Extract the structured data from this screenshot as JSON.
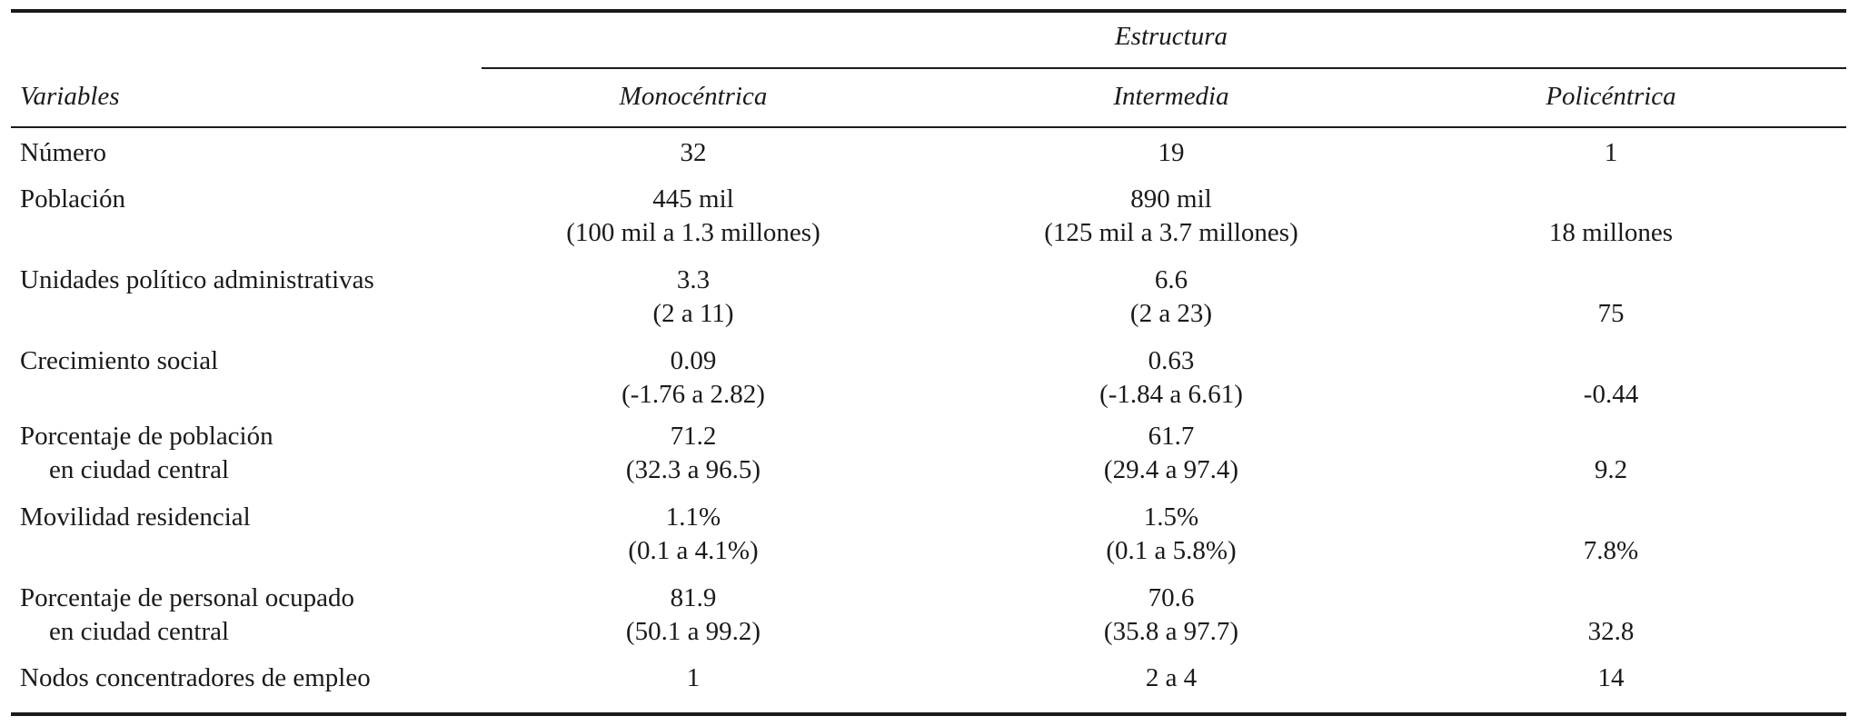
{
  "header": {
    "spanner": "Estructura",
    "stub": "Variables",
    "columns": [
      "Monocéntrica",
      "Intermedia",
      "Policéntrica"
    ]
  },
  "rows": [
    {
      "label": [
        "Número"
      ],
      "mono": [
        "32"
      ],
      "inter": [
        "19"
      ],
      "poli": "1"
    },
    {
      "label": [
        "Población"
      ],
      "mono": [
        "445 mil",
        "(100 mil a 1.3 millones)"
      ],
      "inter": [
        "890 mil",
        "(125 mil a 3.7 millones)"
      ],
      "poli": "18 millones"
    },
    {
      "label": [
        "Unidades político administrativas"
      ],
      "mono": [
        "3.3",
        "(2 a 11)"
      ],
      "inter": [
        "6.6",
        "(2 a 23)"
      ],
      "poli": "75"
    },
    {
      "label": [
        "Crecimiento social"
      ],
      "mono": [
        "0.09",
        "(-1.76 a 2.82)"
      ],
      "inter": [
        "0.63",
        "(-1.84 a 6.61)"
      ],
      "poli": "-0.44"
    },
    {
      "label": [
        "Porcentaje de población",
        "en ciudad central"
      ],
      "mono": [
        "71.2",
        "(32.3 a 96.5)"
      ],
      "inter": [
        "61.7",
        "(29.4 a 97.4)"
      ],
      "poli": "9.2"
    },
    {
      "label": [
        "Movilidad residencial"
      ],
      "mono": [
        "1.1%",
        "(0.1 a 4.1%)"
      ],
      "inter": [
        "1.5%",
        "(0.1 a 5.8%)"
      ],
      "poli": "7.8%"
    },
    {
      "label": [
        "Porcentaje de personal ocupado",
        "en ciudad central"
      ],
      "mono": [
        "81.9",
        "(50.1 a 99.2)"
      ],
      "inter": [
        "70.6",
        "(35.8 a 97.7)"
      ],
      "poli": "32.8"
    },
    {
      "label": [
        "Nodos concentradores de empleo"
      ],
      "mono": [
        "1"
      ],
      "inter": [
        "2 a 4"
      ],
      "poli": "14"
    }
  ]
}
